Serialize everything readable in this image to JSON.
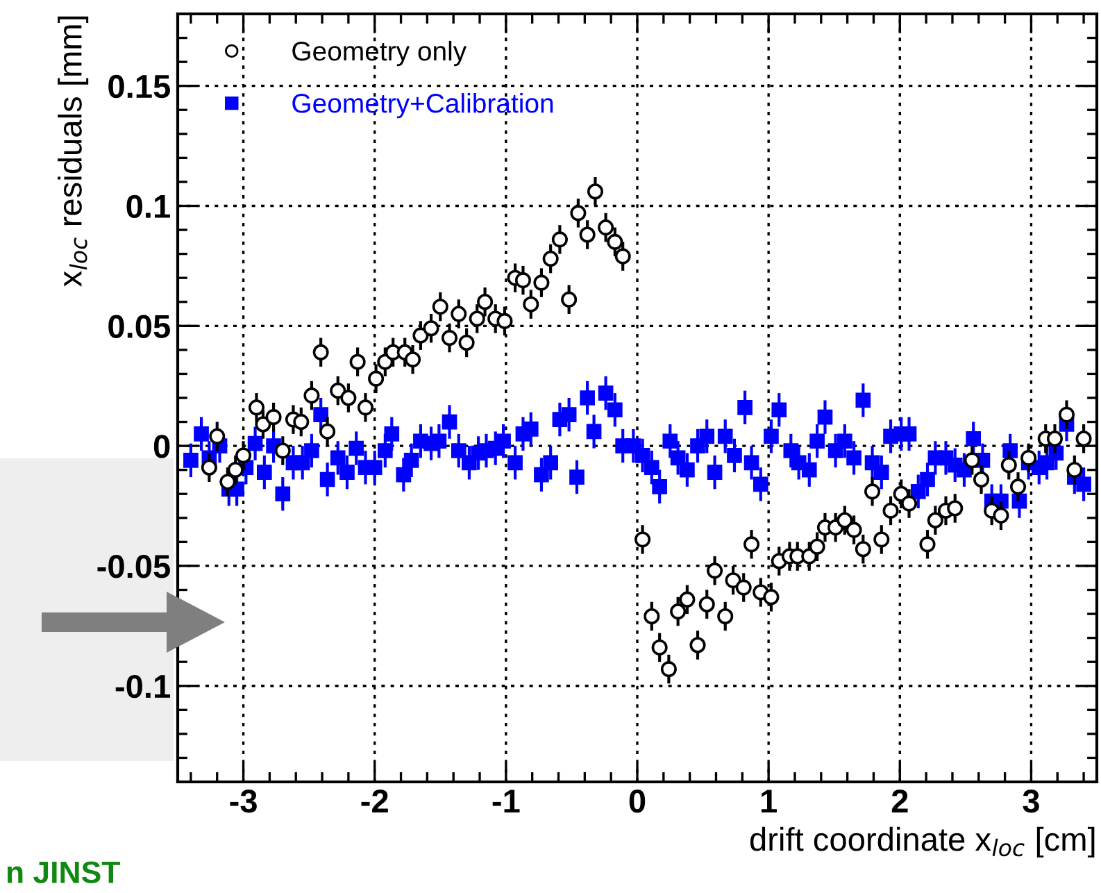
{
  "chart_data": {
    "type": "scatter",
    "xlabel": "drift coordinate x$_{loc}$ [cm]",
    "ylabel": "x$_{loc}$ residuals [mm]",
    "xlim": [
      -3.5,
      3.5
    ],
    "ylim": [
      -0.14,
      0.18
    ],
    "xticks": [
      -3,
      -2,
      -1,
      0,
      1,
      2,
      3
    ],
    "yticks": [
      -0.1,
      -0.05,
      0,
      0.05,
      0.1,
      0.15
    ],
    "grid": true,
    "legend": "top left",
    "annotations": [
      "n JINST"
    ],
    "series": [
      {
        "name": "Geometry only",
        "color": "#000000",
        "marker": "circle",
        "x": [
          -3.26,
          -3.2,
          -3.12,
          -3.06,
          -3.0,
          -2.9,
          -2.85,
          -2.77,
          -2.7,
          -2.62,
          -2.56,
          -2.48,
          -2.41,
          -2.36,
          -2.28,
          -2.2,
          -2.13,
          -2.07,
          -1.99,
          -1.92,
          -1.86,
          -1.77,
          -1.71,
          -1.65,
          -1.57,
          -1.5,
          -1.43,
          -1.36,
          -1.3,
          -1.22,
          -1.16,
          -1.08,
          -1.01,
          -0.93,
          -0.87,
          -0.81,
          -0.73,
          -0.66,
          -0.59,
          -0.52,
          -0.45,
          -0.38,
          -0.32,
          -0.24,
          -0.17,
          -0.11,
          0.04,
          0.11,
          0.17,
          0.24,
          0.31,
          0.38,
          0.46,
          0.53,
          0.59,
          0.67,
          0.73,
          0.81,
          0.87,
          0.94,
          1.02,
          1.08,
          1.16,
          1.22,
          1.31,
          1.37,
          1.43,
          1.51,
          1.58,
          1.65,
          1.72,
          1.79,
          1.86,
          1.93,
          2.01,
          2.07,
          2.21,
          2.27,
          2.35,
          2.42,
          2.55,
          2.62,
          2.7,
          2.77,
          2.83,
          2.9,
          2.98,
          3.11,
          3.18,
          3.27,
          3.33,
          3.4
        ],
        "values": [
          -0.009,
          0.004,
          -0.015,
          -0.01,
          -0.004,
          0.016,
          0.009,
          0.012,
          -0.002,
          0.011,
          0.01,
          0.021,
          0.039,
          0.006,
          0.023,
          0.02,
          0.035,
          0.016,
          0.028,
          0.035,
          0.039,
          0.039,
          0.036,
          0.046,
          0.049,
          0.058,
          0.045,
          0.055,
          0.043,
          0.053,
          0.06,
          0.053,
          0.052,
          0.07,
          0.069,
          0.059,
          0.068,
          0.078,
          0.086,
          0.061,
          0.097,
          0.088,
          0.106,
          0.091,
          0.085,
          0.079,
          -0.039,
          -0.071,
          -0.084,
          -0.093,
          -0.069,
          -0.064,
          -0.083,
          -0.066,
          -0.052,
          -0.071,
          -0.056,
          -0.059,
          -0.041,
          -0.061,
          -0.063,
          -0.048,
          -0.046,
          -0.046,
          -0.046,
          -0.042,
          -0.034,
          -0.034,
          -0.031,
          -0.035,
          -0.043,
          -0.019,
          -0.039,
          -0.027,
          -0.02,
          -0.024,
          -0.041,
          -0.031,
          -0.027,
          -0.026,
          -0.006,
          -0.014,
          -0.027,
          -0.029,
          -0.008,
          -0.017,
          -0.005,
          0.003,
          0.003,
          0.013,
          -0.01,
          0.003
        ],
        "errors": [
          0.006,
          0.006,
          0.006,
          0.006,
          0.006,
          0.006,
          0.006,
          0.006,
          0.006,
          0.006,
          0.006,
          0.006,
          0.006,
          0.006,
          0.006,
          0.006,
          0.006,
          0.006,
          0.006,
          0.006,
          0.006,
          0.006,
          0.006,
          0.006,
          0.006,
          0.006,
          0.006,
          0.006,
          0.006,
          0.006,
          0.006,
          0.006,
          0.006,
          0.006,
          0.006,
          0.006,
          0.006,
          0.006,
          0.006,
          0.006,
          0.006,
          0.006,
          0.006,
          0.006,
          0.006,
          0.006,
          0.006,
          0.006,
          0.006,
          0.006,
          0.006,
          0.006,
          0.006,
          0.006,
          0.006,
          0.006,
          0.006,
          0.006,
          0.006,
          0.006,
          0.006,
          0.006,
          0.006,
          0.006,
          0.006,
          0.006,
          0.006,
          0.006,
          0.006,
          0.006,
          0.006,
          0.006,
          0.006,
          0.006,
          0.006,
          0.006,
          0.006,
          0.006,
          0.006,
          0.006,
          0.006,
          0.006,
          0.006,
          0.006,
          0.006,
          0.006,
          0.006,
          0.006,
          0.006,
          0.006,
          0.006,
          0.006
        ]
      },
      {
        "name": "Geometry+Calibration",
        "color": "#0000ff",
        "marker": "square",
        "x": [
          -3.4,
          -3.32,
          -3.26,
          -3.18,
          -3.11,
          -3.05,
          -2.98,
          -2.91,
          -2.84,
          -2.77,
          -2.7,
          -2.62,
          -2.55,
          -2.48,
          -2.41,
          -2.36,
          -2.28,
          -2.21,
          -2.14,
          -2.07,
          -2.0,
          -1.92,
          -1.87,
          -1.78,
          -1.72,
          -1.65,
          -1.57,
          -1.51,
          -1.43,
          -1.36,
          -1.28,
          -1.21,
          -1.15,
          -1.08,
          -1.02,
          -0.93,
          -0.87,
          -0.81,
          -0.73,
          -0.66,
          -0.59,
          -0.52,
          -0.46,
          -0.38,
          -0.33,
          -0.24,
          -0.17,
          -0.11,
          -0.03,
          0.04,
          0.11,
          0.17,
          0.25,
          0.31,
          0.38,
          0.46,
          0.53,
          0.59,
          0.67,
          0.74,
          0.82,
          0.87,
          0.94,
          1.02,
          1.08,
          1.17,
          1.23,
          1.31,
          1.37,
          1.43,
          1.51,
          1.58,
          1.65,
          1.72,
          1.79,
          1.86,
          1.93,
          2.01,
          2.07,
          2.14,
          2.21,
          2.27,
          2.35,
          2.42,
          2.49,
          2.56,
          2.63,
          2.7,
          2.77,
          2.84,
          2.91,
          2.98,
          3.06,
          3.12,
          3.19,
          3.27,
          3.33,
          3.4
        ],
        "values": [
          -0.006,
          0.005,
          -0.005,
          0.0,
          -0.018,
          -0.018,
          -0.009,
          0.001,
          -0.011,
          0.0,
          -0.02,
          -0.007,
          -0.007,
          -0.002,
          0.013,
          -0.014,
          -0.005,
          -0.011,
          -0.001,
          -0.009,
          -0.009,
          -0.002,
          0.005,
          -0.012,
          -0.006,
          0.002,
          0.001,
          0.002,
          0.01,
          -0.002,
          -0.007,
          -0.003,
          -0.002,
          -0.001,
          0.002,
          -0.007,
          0.005,
          0.007,
          -0.012,
          -0.007,
          0.011,
          0.013,
          -0.013,
          0.02,
          0.006,
          0.022,
          0.015,
          0.0,
          0.0,
          -0.004,
          -0.009,
          -0.017,
          0.002,
          -0.005,
          -0.01,
          0.0,
          0.004,
          -0.011,
          0.004,
          -0.004,
          0.016,
          -0.007,
          -0.016,
          0.004,
          0.015,
          -0.002,
          -0.007,
          -0.01,
          0.002,
          0.012,
          -0.002,
          0.002,
          -0.005,
          0.019,
          -0.007,
          -0.011,
          0.004,
          0.005,
          0.005,
          -0.019,
          -0.014,
          -0.005,
          -0.005,
          -0.008,
          -0.01,
          0.003,
          -0.006,
          -0.023,
          -0.023,
          -0.002,
          -0.023,
          -0.007,
          -0.009,
          -0.007,
          -0.003,
          0.009,
          -0.013,
          -0.016
        ],
        "errors": [
          0.007,
          0.007,
          0.007,
          0.007,
          0.007,
          0.007,
          0.007,
          0.007,
          0.007,
          0.007,
          0.007,
          0.007,
          0.007,
          0.007,
          0.007,
          0.007,
          0.007,
          0.007,
          0.007,
          0.007,
          0.007,
          0.007,
          0.007,
          0.007,
          0.007,
          0.007,
          0.007,
          0.007,
          0.007,
          0.007,
          0.007,
          0.007,
          0.007,
          0.007,
          0.007,
          0.007,
          0.007,
          0.007,
          0.007,
          0.007,
          0.007,
          0.007,
          0.007,
          0.007,
          0.007,
          0.007,
          0.007,
          0.007,
          0.007,
          0.007,
          0.007,
          0.007,
          0.007,
          0.007,
          0.007,
          0.007,
          0.007,
          0.007,
          0.007,
          0.007,
          0.007,
          0.007,
          0.007,
          0.007,
          0.007,
          0.007,
          0.007,
          0.007,
          0.007,
          0.007,
          0.007,
          0.007,
          0.007,
          0.007,
          0.007,
          0.007,
          0.007,
          0.007,
          0.007,
          0.007,
          0.007,
          0.007,
          0.007,
          0.007,
          0.007,
          0.007,
          0.007,
          0.007,
          0.007,
          0.007,
          0.007,
          0.007,
          0.007,
          0.007,
          0.007,
          0.007,
          0.007,
          0.007
        ]
      }
    ]
  }
}
